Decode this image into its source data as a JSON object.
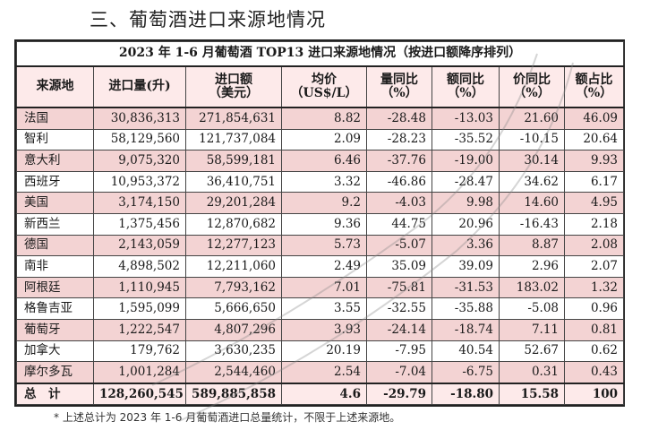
{
  "section_title": "三、葡萄酒进口来源地情况",
  "table_caption": "2023 年 1-6 月葡萄酒 TOP13 进口来源地情况（按进口额降序排列）",
  "headers": [
    [
      "来源地",
      ""
    ],
    [
      "进口量(升)",
      ""
    ],
    [
      "进口额",
      "（美元）"
    ],
    [
      "均价",
      "（US$/L）"
    ],
    [
      "量同比",
      "（%）"
    ],
    [
      "额同比",
      "（%）"
    ],
    [
      "价同比",
      "（%）"
    ],
    [
      "额占比",
      "（%）"
    ]
  ],
  "rows": [
    [
      "法国",
      "30,836,313",
      "271,854,631",
      "8.82",
      "-28.48",
      "-13.03",
      "21.60",
      "46.09"
    ],
    [
      "智利",
      "58,129,560",
      "121,737,084",
      "2.09",
      "-28.23",
      "-35.52",
      "-10.15",
      "20.64"
    ],
    [
      "意大利",
      "9,075,320",
      "58,599,181",
      "6.46",
      "-37.76",
      "-19.00",
      "30.14",
      "9.93"
    ],
    [
      "西班牙",
      "10,953,372",
      "36,410,751",
      "3.32",
      "-46.86",
      "-28.47",
      "34.62",
      "6.17"
    ],
    [
      "美国",
      "3,174,150",
      "29,201,284",
      "9.2",
      "-4.03",
      "9.98",
      "14.60",
      "4.95"
    ],
    [
      "新西兰",
      "1,375,456",
      "12,870,682",
      "9.36",
      "44.75",
      "20.96",
      "-16.43",
      "2.18"
    ],
    [
      "德国",
      "2,143,059",
      "12,277,123",
      "5.73",
      "-5.07",
      "3.36",
      "8.87",
      "2.08"
    ],
    [
      "南非",
      "4,898,502",
      "12,211,060",
      "2.49",
      "35.09",
      "39.09",
      "2.96",
      "2.07"
    ],
    [
      "阿根廷",
      "1,110,945",
      "7,793,162",
      "7.01",
      "-75.81",
      "-31.53",
      "183.02",
      "1.32"
    ],
    [
      "格鲁吉亚",
      "1,595,099",
      "5,666,650",
      "3.55",
      "-32.55",
      "-35.88",
      "-5.08",
      "0.96"
    ],
    [
      "葡萄牙",
      "1,222,547",
      "4,807,296",
      "3.93",
      "-24.14",
      "-18.74",
      "7.11",
      "0.81"
    ],
    [
      "加拿大",
      "179,762",
      "3,630,235",
      "20.19",
      "-7.95",
      "40.54",
      "52.67",
      "0.62"
    ],
    [
      "摩尔多瓦",
      "1,001,284",
      "2,544,460",
      "2.54",
      "-7.04",
      "-6.75",
      "0.31",
      "0.43"
    ]
  ],
  "total": [
    "总　计",
    "128,260,545",
    "589,885,858",
    "4.6",
    "-29.79",
    "-18.80",
    "15.58",
    "100"
  ],
  "footnote": "* 上述总计为 2023 年 1-6 月葡萄酒进口总量统计，不限于上述来源地。",
  "colors": {
    "header_bg": "#fdeaea",
    "stripe_bg": "#f3d3d3",
    "border": "#222222"
  }
}
